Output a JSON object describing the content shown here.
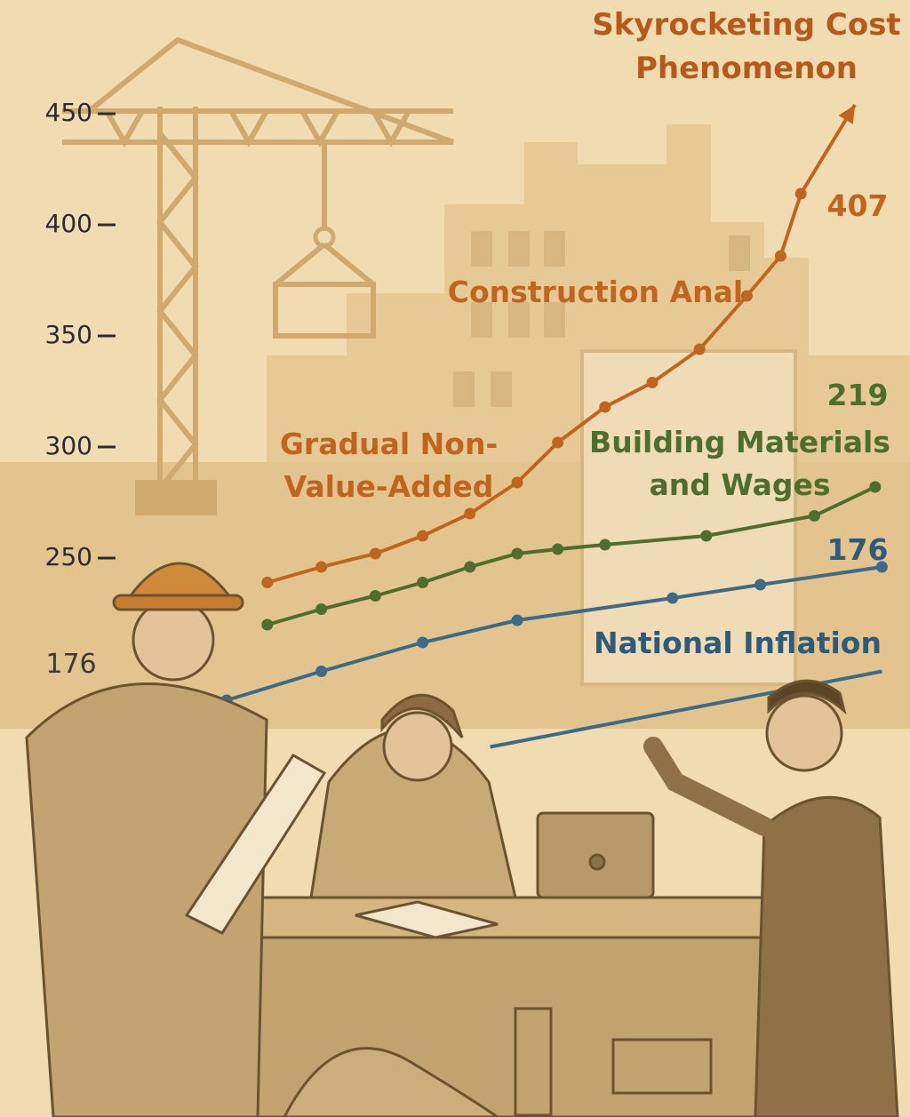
{
  "chart_data": {
    "type": "line",
    "title": "Skyrocketing Cost Phenomenon",
    "ylim": [
      150,
      460
    ],
    "yticks": [
      250,
      300,
      350,
      400,
      450
    ],
    "xlim": [
      0,
      100
    ],
    "series": [
      {
        "name": "Construction Anal",
        "color": "#c0651f",
        "x": [
          8,
          16,
          24,
          31,
          38,
          45,
          51,
          58,
          65,
          72,
          79,
          84,
          87,
          95
        ],
        "values": [
          239,
          246,
          252,
          260,
          270,
          284,
          302,
          318,
          329,
          344,
          368,
          386,
          414,
          454
        ]
      },
      {
        "name": "Building Materials and Wages",
        "color": "#4d6e2c",
        "x": [
          8,
          16,
          24,
          31,
          38,
          45,
          51,
          58,
          73,
          89,
          98
        ],
        "values": [
          220,
          227,
          233,
          239,
          246,
          252,
          254,
          256,
          260,
          269,
          282
        ]
      },
      {
        "color": "#3f6a86",
        "x": [
          2,
          16,
          31,
          45,
          68,
          81,
          99
        ],
        "values": [
          186,
          199,
          212,
          222,
          232,
          238,
          246
        ]
      },
      {
        "name": "National Inflation",
        "color": "#3f6a86",
        "x": [
          41,
          99
        ],
        "values": [
          165,
          199
        ]
      }
    ],
    "annotations": [
      "Gradual Non-Value-Added",
      "407",
      "219",
      "176",
      "176"
    ]
  }
}
